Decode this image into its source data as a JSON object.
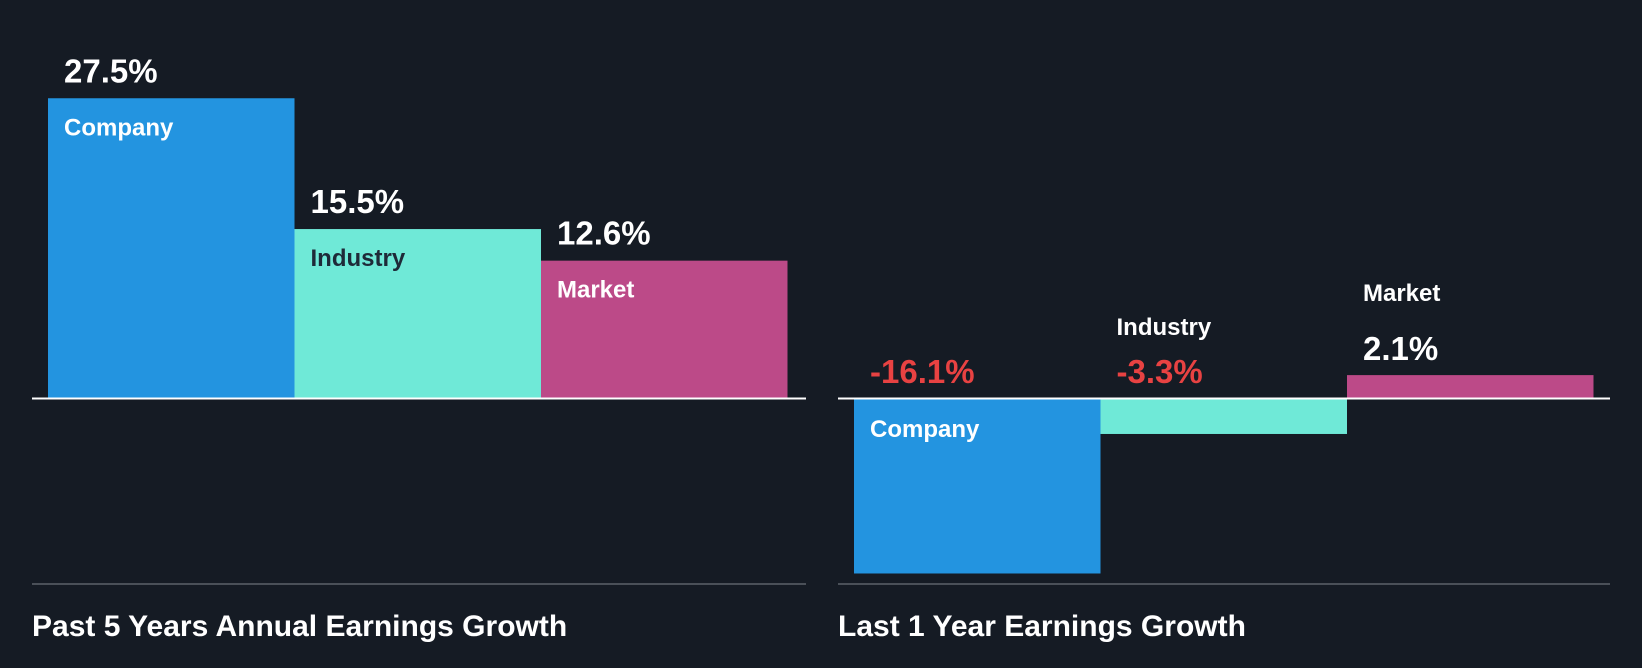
{
  "colors": {
    "background": "#151b24",
    "company": "#2394e0",
    "industry": "#6fe9d7",
    "market": "#bc4a88",
    "positive_label": "#ffffff",
    "negative_label": "#e84242",
    "axis": "#ffffff",
    "separator": "#4a5058"
  },
  "chart_data": [
    {
      "type": "bar",
      "title": "Past 5 Years Annual Earnings Growth",
      "categories": [
        "Company",
        "Industry",
        "Market"
      ],
      "values": [
        27.5,
        15.5,
        12.6
      ],
      "labels": [
        "27.5%",
        "15.5%",
        "12.6%"
      ],
      "ylim": [
        -16.5,
        27.5
      ],
      "xlabel": "",
      "ylabel": ""
    },
    {
      "type": "bar",
      "title": "Last 1 Year Earnings Growth",
      "categories": [
        "Company",
        "Industry",
        "Market"
      ],
      "values": [
        -16.1,
        -3.3,
        2.1
      ],
      "labels": [
        "-16.1%",
        "-3.3%",
        "2.1%"
      ],
      "ylim": [
        -16.1,
        27.5
      ],
      "xlabel": "",
      "ylabel": ""
    }
  ]
}
